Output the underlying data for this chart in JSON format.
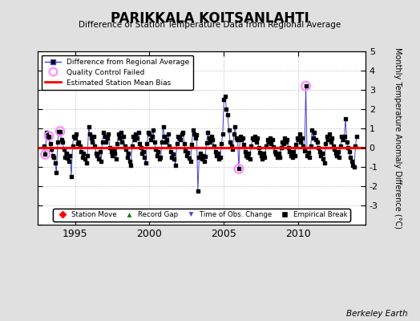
{
  "title": "PARIKKALA KOITSANLAHTI",
  "subtitle": "Difference of Station Temperature Data from Regional Average",
  "ylabel": "Monthly Temperature Anomaly Difference (°C)",
  "xlabel_ticks": [
    1995,
    2000,
    2005,
    2010
  ],
  "xlabel_labels": [
    "1995",
    "2000",
    "2005",
    "2010"
  ],
  "ylim": [
    -4,
    5
  ],
  "yticks": [
    -4,
    -3,
    -2,
    -1,
    0,
    1,
    2,
    3,
    4,
    5
  ],
  "xlim_start": 1992.5,
  "xlim_end": 2014.5,
  "bias_line": 0.0,
  "bias_color": "#ff0000",
  "line_color": "#4444cc",
  "marker_color": "#000000",
  "qc_fail_color": "#ff88ff",
  "background_color": "#e0e0e0",
  "plot_bg_color": "#ffffff",
  "grid_color": "#bbbbbb",
  "watermark": "Berkeley Earth",
  "qc_fail_points": [
    [
      1993.0,
      -0.35
    ],
    [
      1993.25,
      0.6
    ],
    [
      1994.0,
      0.85
    ],
    [
      2006.0,
      -1.1
    ],
    [
      2010.5,
      3.2
    ]
  ],
  "data_monthly": [
    1992.917,
    0.1,
    1993.0,
    -0.35,
    1993.083,
    0.8,
    1993.167,
    0.5,
    1993.25,
    0.6,
    1993.333,
    0.2,
    1993.417,
    -0.1,
    1993.5,
    -0.4,
    1993.583,
    -0.5,
    1993.667,
    -0.8,
    1993.75,
    -1.3,
    1993.833,
    0.3,
    1993.917,
    0.85,
    1994.0,
    0.85,
    1994.083,
    0.4,
    1994.167,
    0.3,
    1994.25,
    -0.1,
    1994.333,
    -0.5,
    1994.417,
    -0.3,
    1994.5,
    -0.55,
    1994.583,
    -0.7,
    1994.667,
    -0.4,
    1994.75,
    -1.5,
    1994.833,
    0.1,
    1994.917,
    0.6,
    1995.0,
    0.5,
    1995.083,
    0.7,
    1995.167,
    0.2,
    1995.25,
    0.3,
    1995.333,
    0.1,
    1995.417,
    -0.2,
    1995.5,
    -0.5,
    1995.583,
    -0.3,
    1995.667,
    -0.6,
    1995.75,
    -0.8,
    1995.833,
    -0.4,
    1995.917,
    1.1,
    1996.0,
    0.7,
    1996.083,
    0.5,
    1996.167,
    0.3,
    1996.25,
    0.6,
    1996.333,
    0.1,
    1996.417,
    -0.3,
    1996.5,
    -0.4,
    1996.583,
    -0.6,
    1996.667,
    -0.2,
    1996.75,
    -0.7,
    1996.833,
    0.3,
    1996.917,
    0.8,
    1997.0,
    0.6,
    1997.083,
    0.3,
    1997.167,
    0.5,
    1997.25,
    0.7,
    1997.333,
    0.0,
    1997.417,
    -0.2,
    1997.5,
    -0.4,
    1997.583,
    -0.1,
    1997.667,
    -0.3,
    1997.75,
    -0.6,
    1997.833,
    0.2,
    1997.917,
    0.7,
    1998.0,
    0.5,
    1998.083,
    0.8,
    1998.167,
    0.3,
    1998.25,
    0.6,
    1998.333,
    0.1,
    1998.417,
    -0.1,
    1998.5,
    -0.5,
    1998.583,
    -0.3,
    1998.667,
    -0.7,
    1998.75,
    -0.9,
    1998.833,
    0.1,
    1998.917,
    0.6,
    1999.0,
    0.4,
    1999.083,
    0.7,
    1999.167,
    0.5,
    1999.25,
    0.8,
    1999.333,
    0.2,
    1999.417,
    0.0,
    1999.5,
    -0.3,
    1999.583,
    -0.2,
    1999.667,
    -0.5,
    1999.75,
    -0.8,
    1999.833,
    0.2,
    1999.917,
    0.8,
    2000.0,
    0.7,
    2000.083,
    0.4,
    2000.167,
    0.6,
    2000.25,
    0.9,
    2000.333,
    0.3,
    2000.417,
    -0.1,
    2000.5,
    -0.4,
    2000.583,
    -0.2,
    2000.667,
    -0.6,
    2000.75,
    -0.5,
    2000.833,
    0.3,
    2000.917,
    1.1,
    2001.0,
    0.6,
    2001.083,
    0.3,
    2001.167,
    0.4,
    2001.25,
    0.7,
    2001.333,
    0.1,
    2001.417,
    -0.2,
    2001.5,
    -0.5,
    2001.583,
    -0.35,
    2001.667,
    -0.6,
    2001.75,
    -0.9,
    2001.833,
    0.2,
    2001.917,
    0.6,
    2002.0,
    0.5,
    2002.083,
    0.4,
    2002.167,
    0.7,
    2002.25,
    0.8,
    2002.333,
    0.2,
    2002.417,
    -0.15,
    2002.5,
    -0.4,
    2002.583,
    -0.25,
    2002.667,
    -0.55,
    2002.75,
    -0.7,
    2002.833,
    0.15,
    2002.917,
    0.9,
    2003.0,
    0.7,
    2003.083,
    0.5,
    2003.167,
    0.65,
    2003.25,
    -2.25,
    2003.333,
    -0.5,
    2003.417,
    -0.3,
    2003.5,
    -0.6,
    2003.583,
    -0.4,
    2003.667,
    -0.7,
    2003.75,
    -0.45,
    2003.833,
    0.25,
    2003.917,
    0.8,
    2004.0,
    0.5,
    2004.083,
    0.3,
    2004.167,
    0.6,
    2004.25,
    0.4,
    2004.333,
    0.1,
    2004.417,
    -0.2,
    2004.5,
    -0.4,
    2004.583,
    -0.3,
    2004.667,
    -0.6,
    2004.75,
    -0.5,
    2004.833,
    0.2,
    2004.917,
    0.7,
    2005.0,
    2.5,
    2005.083,
    2.65,
    2005.167,
    2.0,
    2005.25,
    1.7,
    2005.333,
    0.9,
    2005.417,
    0.3,
    2005.5,
    0.1,
    2005.583,
    -0.1,
    2005.667,
    0.7,
    2005.75,
    1.1,
    2005.833,
    0.5,
    2005.917,
    0.4,
    2006.0,
    -1.1,
    2006.083,
    0.6,
    2006.167,
    0.4,
    2006.25,
    0.5,
    2006.333,
    0.15,
    2006.417,
    -0.2,
    2006.5,
    -0.4,
    2006.583,
    -0.5,
    2006.667,
    -0.3,
    2006.75,
    -0.6,
    2006.833,
    0.1,
    2006.917,
    0.5,
    2007.0,
    0.4,
    2007.083,
    0.6,
    2007.167,
    0.3,
    2007.25,
    0.5,
    2007.333,
    0.0,
    2007.417,
    -0.25,
    2007.5,
    -0.4,
    2007.583,
    -0.6,
    2007.667,
    -0.3,
    2007.75,
    -0.5,
    2007.833,
    0.1,
    2007.917,
    0.4,
    2008.0,
    0.3,
    2008.083,
    0.5,
    2008.167,
    0.2,
    2008.25,
    0.4,
    2008.333,
    0.05,
    2008.417,
    -0.2,
    2008.5,
    -0.35,
    2008.583,
    -0.5,
    2008.667,
    -0.3,
    2008.75,
    -0.5,
    2008.833,
    0.0,
    2008.917,
    0.3,
    2009.0,
    0.2,
    2009.083,
    0.5,
    2009.167,
    0.3,
    2009.25,
    0.4,
    2009.333,
    0.0,
    2009.417,
    -0.2,
    2009.5,
    -0.4,
    2009.583,
    -0.5,
    2009.667,
    -0.2,
    2009.75,
    -0.4,
    2009.833,
    0.15,
    2009.917,
    0.5,
    2010.0,
    0.4,
    2010.083,
    0.7,
    2010.167,
    0.3,
    2010.25,
    0.5,
    2010.333,
    0.1,
    2010.417,
    -0.15,
    2010.5,
    3.2,
    2010.583,
    -0.4,
    2010.667,
    -0.25,
    2010.75,
    -0.5,
    2010.833,
    0.1,
    2010.917,
    0.9,
    2011.0,
    0.5,
    2011.083,
    0.8,
    2011.167,
    0.4,
    2011.25,
    0.3,
    2011.333,
    0.0,
    2011.417,
    -0.2,
    2011.5,
    -0.4,
    2011.583,
    -0.3,
    2011.667,
    -0.6,
    2011.75,
    -0.8,
    2011.833,
    0.2,
    2011.917,
    0.6,
    2012.0,
    0.4,
    2012.083,
    0.7,
    2012.167,
    0.3,
    2012.25,
    0.5,
    2012.333,
    0.1,
    2012.417,
    -0.1,
    2012.5,
    -0.3,
    2012.583,
    -0.4,
    2012.667,
    -0.2,
    2012.75,
    -0.5,
    2012.833,
    0.1,
    2012.917,
    0.6,
    2013.0,
    0.4,
    2013.083,
    0.6,
    2013.167,
    1.5,
    2013.25,
    0.3,
    2013.333,
    0.0,
    2013.417,
    -0.2,
    2013.5,
    -0.5,
    2013.583,
    -0.7,
    2013.667,
    -0.9,
    2013.75,
    -1.0,
    2013.833,
    0.1,
    2013.917,
    0.6
  ]
}
